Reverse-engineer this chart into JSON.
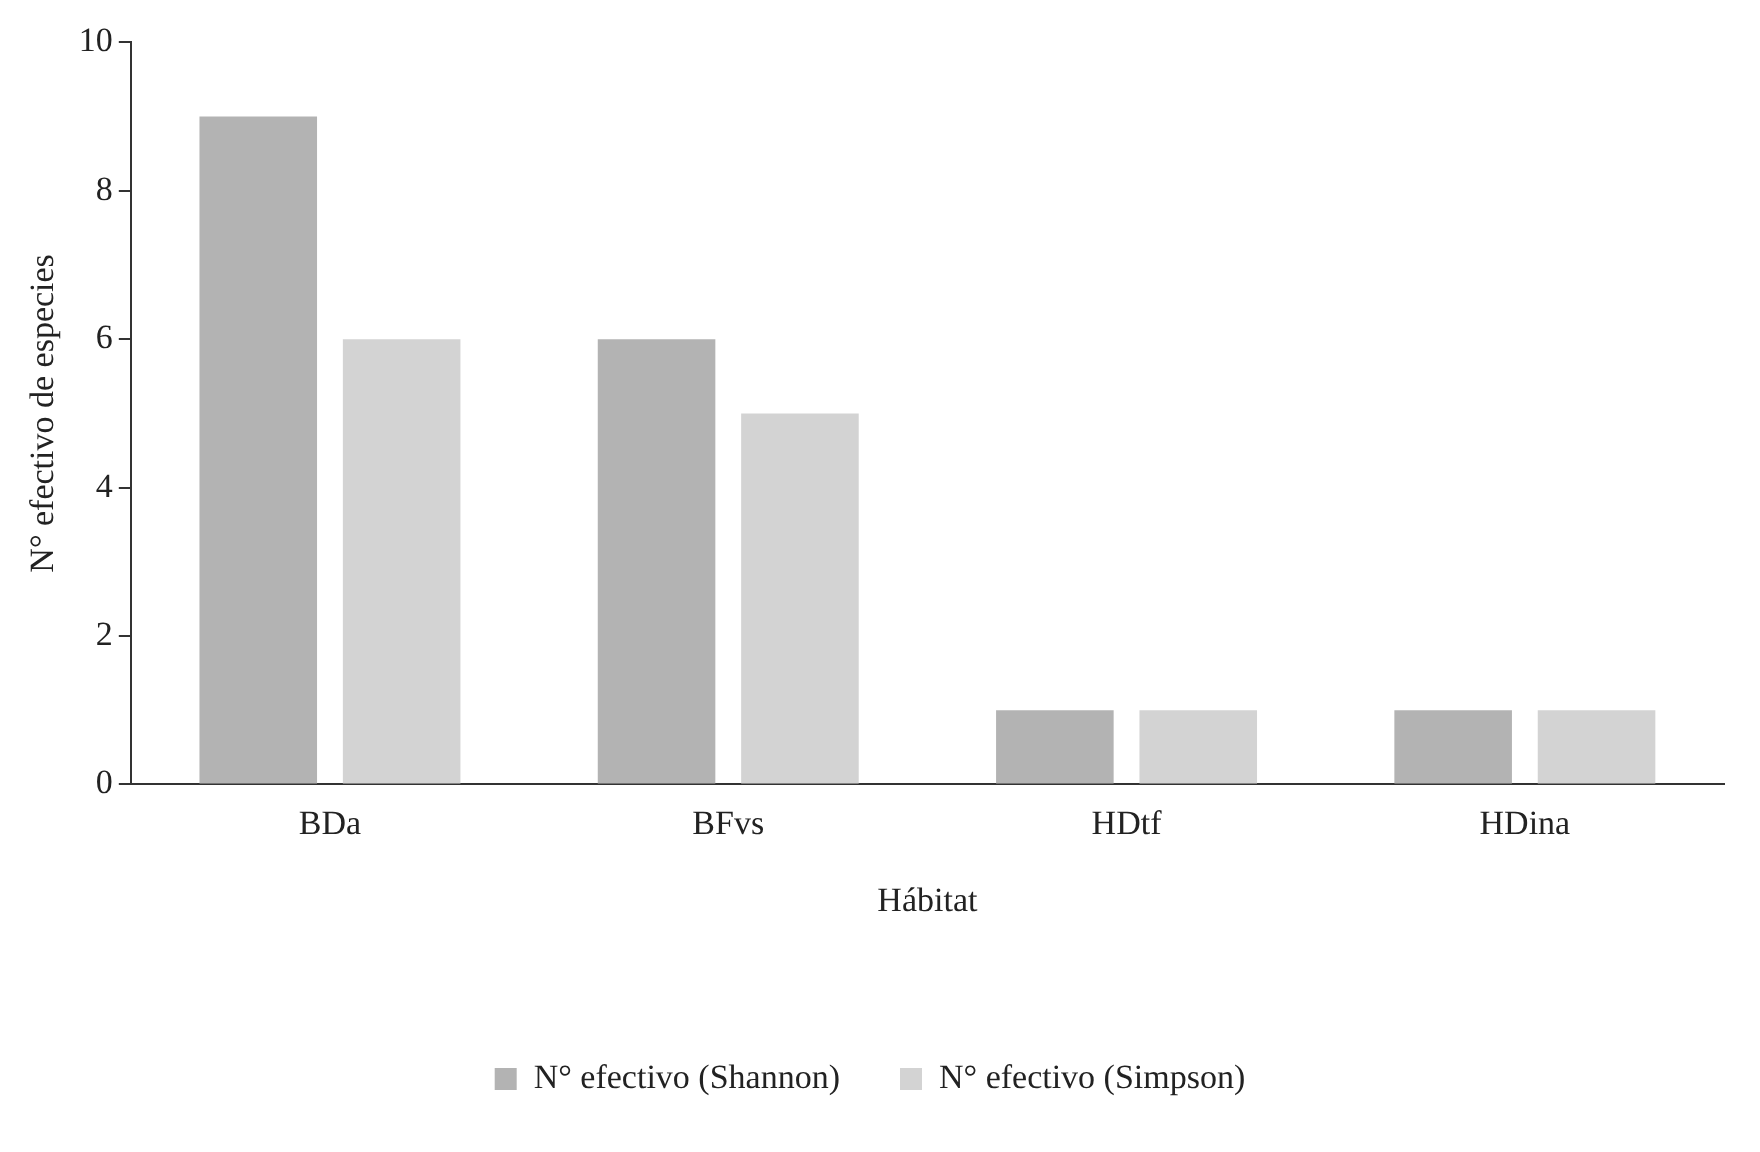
{
  "chart_data": {
    "type": "bar",
    "xlabel": "Hábitat",
    "ylabel": "N° efectivo de especies",
    "categories": [
      "BDa",
      "BFvs",
      "HDtf",
      "HDina"
    ],
    "series": [
      {
        "name": "N° efectivo (Shannon)",
        "color": "#b3b3b3",
        "values": [
          9,
          6,
          1,
          1
        ]
      },
      {
        "name": "N° efectivo (Simpson)",
        "color": "#d3d3d3",
        "values": [
          6,
          5,
          1,
          1
        ]
      }
    ],
    "ylim": [
      0,
      10
    ],
    "yticks": [
      0,
      2,
      4,
      6,
      8,
      10
    ],
    "grid": false,
    "legend": "bottom"
  }
}
